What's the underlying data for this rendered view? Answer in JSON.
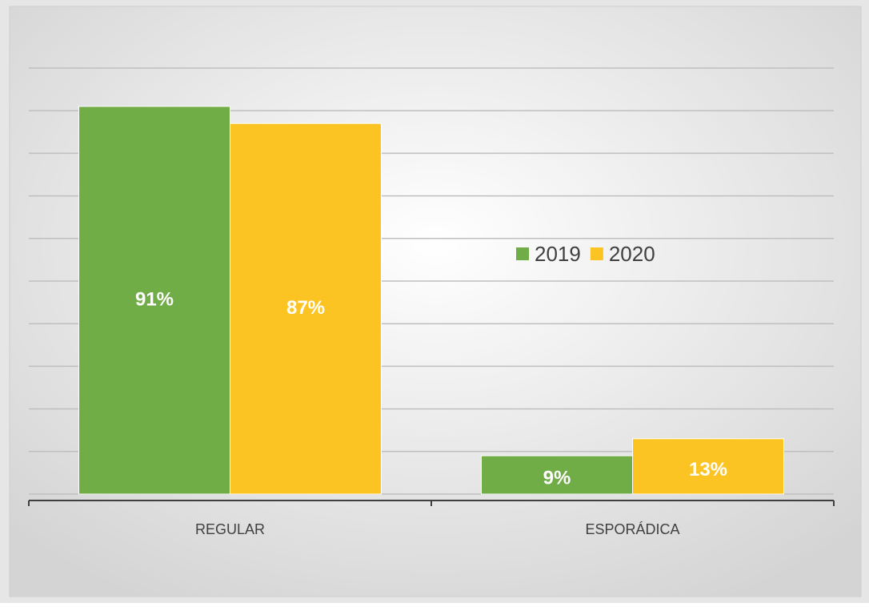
{
  "chart_data": {
    "type": "bar",
    "categories": [
      "REGULAR",
      "ESPORÁDICA"
    ],
    "series": [
      {
        "name": "2019",
        "color": "#70ad47",
        "values": [
          91,
          9
        ],
        "value_labels": [
          "91%",
          "9%"
        ]
      },
      {
        "name": "2020",
        "color": "#fcc423",
        "values": [
          87,
          13
        ],
        "value_labels": [
          "87%",
          "13%"
        ]
      }
    ],
    "ylim": [
      0,
      100
    ],
    "yticks": [
      0,
      10,
      20,
      30,
      40,
      50,
      60,
      70,
      80,
      90,
      100
    ],
    "grid": true
  }
}
